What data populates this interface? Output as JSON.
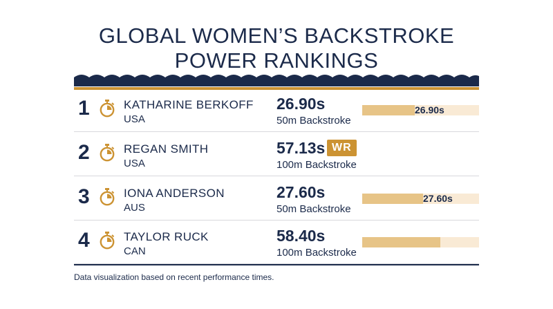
{
  "title_line1": "GLOBAL WOMEN’S BACKSTROKE",
  "title_line2": "POWER RANKINGS",
  "colors": {
    "navy": "#1b2a4a",
    "gold": "#cc9333",
    "bar_fill": "#e7c487",
    "bar_track": "#f9ead5"
  },
  "bar_scale_max": 30,
  "rankings": [
    {
      "rank": "1",
      "icon": "stopwatch-icon",
      "name": "KATHARINE BERKOFF",
      "country": "USA",
      "time": "26.90s",
      "time_value": 26.9,
      "event": "50m Backstroke",
      "badge": "",
      "bar_label": "26.90s"
    },
    {
      "rank": "2",
      "icon": "stopwatch-icon",
      "name": "REGAN SMITH",
      "country": "USA",
      "time": "57.13s",
      "time_value": 57.13,
      "event": "100m Backstroke",
      "badge": "WR",
      "bar_label": ""
    },
    {
      "rank": "3",
      "icon": "stopwatch-icon",
      "name": "IONA ANDERSON",
      "country": "AUS",
      "time": "27.60s",
      "time_value": 27.6,
      "event": "50m Backstroke",
      "badge": "",
      "bar_label": "27.60s"
    },
    {
      "rank": "4",
      "icon": "stopwatch-icon",
      "name": "TAYLOR RUCK",
      "country": "CAN",
      "time": "58.40s",
      "time_value": 58.4,
      "event": "100m Backstroke",
      "badge": "",
      "bar_label": ""
    }
  ],
  "bar_fill_fraction": [
    0.45,
    0,
    0.52,
    0.67
  ],
  "footnote": "Data visualization based on recent performance times."
}
